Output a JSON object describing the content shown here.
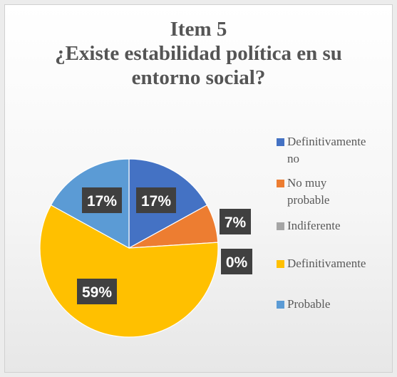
{
  "chart_data": {
    "type": "pie",
    "title_lines": [
      "Item 5",
      "¿Existe estabilidad política en su",
      "entorno social?"
    ],
    "slices": [
      {
        "name": "Definitivamente no",
        "legend_lines": [
          "Definitivamente",
          "no"
        ],
        "value": 17,
        "label": "17%",
        "color": "#4472C4"
      },
      {
        "name": "No muy probable",
        "legend_lines": [
          "No muy",
          "probable"
        ],
        "value": 7,
        "label": "7%",
        "color": "#ED7D31"
      },
      {
        "name": "Indiferente",
        "legend_lines": [
          "Indiferente"
        ],
        "value": 0,
        "label": "0%",
        "color": "#A5A5A5"
      },
      {
        "name": "Definitivamente",
        "legend_lines": [
          "Definitivamente"
        ],
        "value": 59,
        "label": "59%",
        "color": "#FFC000"
      },
      {
        "name": "Probable",
        "legend_lines": [
          "Probable"
        ],
        "value": 17,
        "label": "17%",
        "color": "#5B9BD5"
      }
    ],
    "legend_position": "right",
    "start_angle_deg": 0,
    "direction": "clockwise"
  }
}
